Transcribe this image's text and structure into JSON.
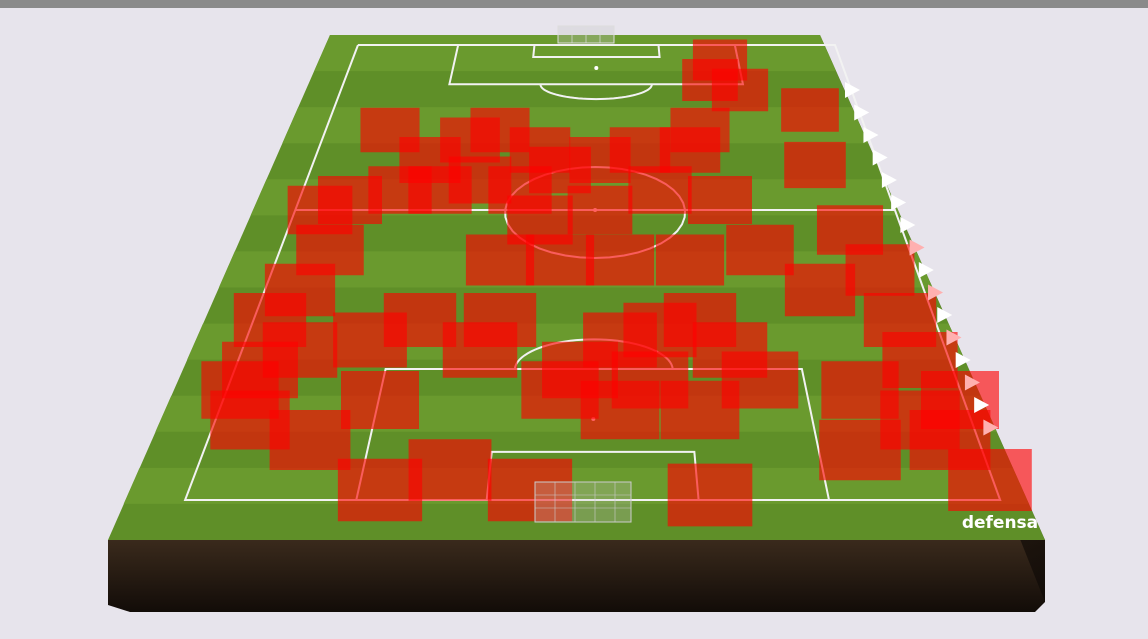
{
  "label": "defensa"
}
